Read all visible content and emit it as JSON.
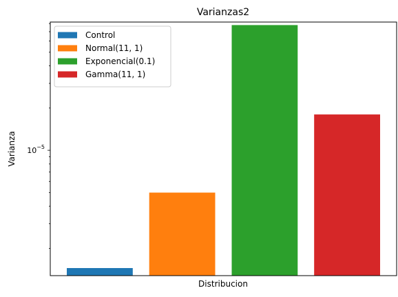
{
  "chart_data": {
    "type": "bar",
    "title": "Varianzas2",
    "xlabel": "Distribucion",
    "ylabel": "Varianza",
    "yscale": "log",
    "ylim": [
      1.28e-06,
      8.2e-05
    ],
    "major_ticks": [
      {
        "value": 1e-05,
        "label_base": "10",
        "label_exp": "−5"
      }
    ],
    "minor_ticks": [
      2e-06,
      3e-06,
      4e-06,
      5e-06,
      6e-06,
      7e-06,
      8e-06,
      9e-06,
      2e-05,
      3e-05,
      4e-05,
      5e-05,
      6e-05,
      7e-05,
      8e-05
    ],
    "legend_position": "top-left",
    "grid": false,
    "series": [
      {
        "name": "Control",
        "value": 1.45e-06,
        "color": "#1f77b4"
      },
      {
        "name": "Normal(11, 1)",
        "value": 5e-06,
        "color": "#ff7f0e"
      },
      {
        "name": "Exponencial(0.1)",
        "value": 7.8e-05,
        "color": "#2ca02c"
      },
      {
        "name": "Gamma(11, 1)",
        "value": 1.8e-05,
        "color": "#d62728"
      }
    ]
  }
}
